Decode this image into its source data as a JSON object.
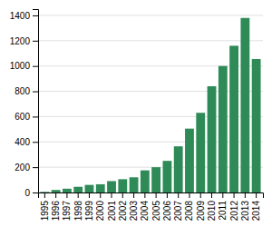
{
  "chart_data": {
    "type": "bar",
    "categories": [
      "1995",
      "1996",
      "1997",
      "1998",
      "1999",
      "2000",
      "2001",
      "2002",
      "2003",
      "2004",
      "2005",
      "2006",
      "2007",
      "2008",
      "2009",
      "2010",
      "2011",
      "2012",
      "2013",
      "2014"
    ],
    "values": [
      5,
      20,
      30,
      45,
      60,
      65,
      90,
      105,
      120,
      175,
      200,
      250,
      365,
      505,
      630,
      840,
      1000,
      1160,
      1380,
      1055
    ],
    "color": "#2e8b57",
    "ylim": [
      0,
      1450
    ],
    "yticks": [
      0,
      200,
      400,
      600,
      800,
      1000,
      1200,
      1400
    ],
    "grid": true
  }
}
